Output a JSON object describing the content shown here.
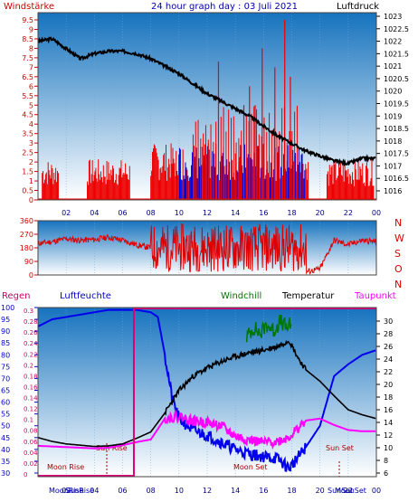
{
  "colors": {
    "wind_axis": "#cc0000",
    "wind_bar": "#ee0000",
    "gust_bar": "#0000dd",
    "pressure": "#000000",
    "direction": "#dd0000",
    "rain": "#cc0066",
    "humidity": "#0000ee",
    "windchill": "#007700",
    "temperature": "#000000",
    "dewpoint": "#ff00ff",
    "bg_top": "#1673be",
    "bg_bottom": "#ffffff"
  },
  "header": {
    "left": "Windstärke",
    "center": "24 hour graph day : 03 Juli 2021",
    "right": "Luftdruck"
  },
  "x_ticks": [
    "02",
    "04",
    "06",
    "08",
    "10",
    "12",
    "14",
    "16",
    "18",
    "20",
    "22",
    "00"
  ],
  "chart_data": [
    {
      "type": "bar",
      "name": "wind-pressure",
      "ylabel_left": "Windstärke",
      "ylabel_right": "Luftdruck",
      "y_left_ticks": [
        "9.5",
        "9",
        "8.5",
        "8",
        "7.5",
        "7",
        "6.5",
        "6",
        "5.5",
        "5",
        "4.5",
        "4",
        "3.5",
        "3",
        "2.5",
        "2",
        "1.5",
        "1",
        "0.5",
        "0"
      ],
      "y_right_ticks": [
        "1023",
        "1022.5",
        "1022",
        "1021.5",
        "1021",
        "1020.5",
        "1020",
        "1019.5",
        "1019",
        "1018.5",
        "1018",
        "1017.5",
        "1017",
        "1016.5",
        "1016"
      ],
      "ylim_left": [
        0,
        9.5
      ],
      "ylim_right": [
        1016,
        1023
      ],
      "x_hours": [
        0,
        24
      ],
      "pressure": {
        "x": [
          0,
          1,
          2,
          3,
          4,
          5,
          6,
          7,
          8,
          9,
          10,
          11,
          12,
          13,
          14,
          15,
          16,
          17,
          18,
          19,
          20,
          21,
          22,
          23,
          24
        ],
        "y": [
          1022.0,
          1022.1,
          1021.7,
          1021.3,
          1021.5,
          1021.6,
          1021.6,
          1021.5,
          1021.3,
          1021.0,
          1020.7,
          1020.3,
          1019.9,
          1019.6,
          1019.3,
          1019.0,
          1018.6,
          1018.2,
          1017.9,
          1017.6,
          1017.4,
          1017.2,
          1017.1,
          1017.3,
          1017.3
        ]
      },
      "wind_gust_segments": [
        {
          "from": 0.3,
          "to": 1.5,
          "level": 1.8
        },
        {
          "from": 3.5,
          "to": 6.5,
          "level": 1.8
        },
        {
          "from": 8.0,
          "to": 19.2,
          "level": 2.5
        },
        {
          "from": 20.5,
          "to": 23.8,
          "level": 1.8
        }
      ],
      "wind_peaks": [
        {
          "x": 12.8,
          "y": 7.3
        },
        {
          "x": 14.6,
          "y": 5.0
        },
        {
          "x": 15.0,
          "y": 6.0
        },
        {
          "x": 15.4,
          "y": 5.0
        },
        {
          "x": 15.9,
          "y": 8.0
        },
        {
          "x": 16.8,
          "y": 7.0
        },
        {
          "x": 17.5,
          "y": 9.5
        },
        {
          "x": 17.9,
          "y": 6.5
        }
      ]
    },
    {
      "type": "line",
      "name": "wind-direction",
      "y_ticks": [
        "360",
        "270",
        "180",
        "90",
        "0"
      ],
      "y_right_labels": [
        "N",
        "W",
        "S",
        "O",
        "N"
      ],
      "ylim": [
        0,
        360
      ],
      "x": [
        0,
        1,
        2,
        3,
        4,
        5,
        6,
        7,
        8,
        9,
        10,
        11,
        12,
        13,
        14,
        15,
        16,
        17,
        18,
        19,
        20,
        21,
        22,
        23,
        24
      ],
      "y": [
        210,
        220,
        240,
        230,
        235,
        250,
        230,
        200,
        180,
        190,
        150,
        170,
        160,
        180,
        190,
        140,
        200,
        180,
        190,
        20,
        40,
        230,
        200,
        230,
        220
      ]
    },
    {
      "type": "line",
      "name": "climate",
      "labels": {
        "rain": "Regen",
        "humidity": "Luftfeuchte",
        "windchill": "Windchill",
        "temperature": "Temperatur",
        "dewpoint": "Taupunkt"
      },
      "y_rain_ticks": [
        "0.3",
        "0.28",
        "0.26",
        "0.24",
        "0.22",
        "0.2",
        "0.18",
        "0.16",
        "0.14",
        "0.12",
        "0.1",
        "0.08",
        "0.06",
        "0.04",
        "0.02",
        "0"
      ],
      "y_humidity_ticks": [
        "100",
        "95",
        "90",
        "85",
        "80",
        "75",
        "70",
        "65",
        "60",
        "55",
        "50",
        "45",
        "40",
        "35",
        "30"
      ],
      "y_temp_ticks": [
        "30",
        "28",
        "26",
        "24",
        "22",
        "20",
        "18",
        "16",
        "14",
        "12",
        "10",
        "8",
        "6"
      ],
      "ylim_humidity": [
        30,
        100
      ],
      "ylim_temp": [
        6,
        31
      ],
      "annotations": [
        "Sun Rise",
        "Sun Set",
        "Moon Rise",
        "Moon Set"
      ],
      "bottom_labels": [
        "MoonRise",
        "SunRise",
        "SunSet",
        "MoonSet"
      ],
      "humidity": {
        "x": [
          0,
          1,
          2,
          3,
          4,
          5,
          6,
          7,
          8,
          8.5,
          9,
          9.5,
          10,
          11,
          12,
          13,
          14,
          15,
          16,
          17,
          17.8,
          18.5,
          19,
          20,
          21,
          22,
          23,
          24
        ],
        "y": [
          92,
          95,
          96,
          97,
          98,
          99,
          99,
          99,
          98,
          96,
          80,
          62,
          53,
          48,
          46,
          43,
          40,
          38,
          37,
          36,
          32,
          37,
          41,
          50,
          71,
          76,
          80,
          82
        ]
      },
      "temperature": {
        "x": [
          0,
          1,
          2,
          3,
          4,
          5,
          6,
          7,
          8,
          9,
          10,
          11,
          12,
          13,
          14,
          15,
          16,
          17,
          17.8,
          18.5,
          19,
          20,
          21,
          22,
          23,
          24
        ],
        "y": [
          11.6,
          11.0,
          10.6,
          10.4,
          10.2,
          10.3,
          10.6,
          11.5,
          12.5,
          15.5,
          19.0,
          21.3,
          22.6,
          23.6,
          24.4,
          25.0,
          25.4,
          26.0,
          27.0,
          24.0,
          22.3,
          20.5,
          18.2,
          16.0,
          15.2,
          14.6
        ]
      },
      "dewpoint": {
        "x": [
          0,
          1,
          2,
          3,
          4,
          5,
          6,
          7,
          8,
          9,
          10,
          11,
          12,
          13,
          14,
          15,
          16,
          17,
          17.8,
          18.5,
          19,
          20,
          21,
          22,
          23,
          24
        ],
        "y": [
          10.3,
          10.2,
          10.1,
          10.0,
          9.9,
          10.0,
          10.4,
          10.9,
          11.3,
          14.6,
          15.0,
          14.2,
          14.0,
          13.4,
          11.8,
          11.2,
          10.8,
          11.0,
          11.7,
          13.2,
          14.3,
          14.6,
          13.6,
          12.8,
          12.6,
          12.6
        ]
      },
      "windchill": {
        "x": [
          14.8,
          15.3,
          15.8,
          16.2,
          16.7,
          17.2,
          17.6,
          18.0
        ],
        "y": [
          27.5,
          29.0,
          28.0,
          29.5,
          28.5,
          30.0,
          29.0,
          29.5
        ]
      },
      "rain_marker_hour": 6.8
    }
  ]
}
